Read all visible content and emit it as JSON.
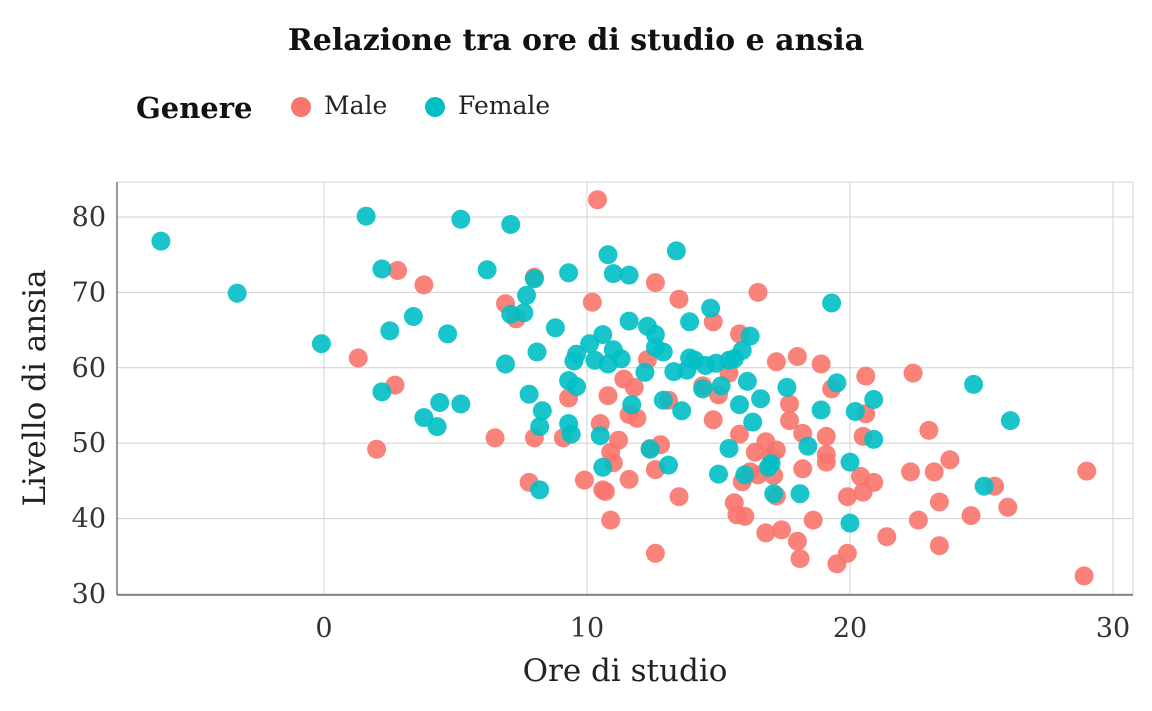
{
  "chart_data": {
    "type": "scatter",
    "title": "Relazione tra ore di studio e ansia",
    "xlabel": "Ore di studio",
    "ylabel": "Livello di ansia",
    "xlim": [
      -8,
      31
    ],
    "ylim": [
      30,
      85
    ],
    "xticks": [
      0,
      10,
      20,
      30
    ],
    "yticks": [
      30,
      40,
      50,
      60,
      70,
      80
    ],
    "grid": true,
    "legend": {
      "title": "Genere",
      "position": "top-left"
    },
    "series": [
      {
        "name": "Male",
        "color": "#F8766D",
        "points": [
          [
            10.4,
            82.3
          ],
          [
            2.8,
            72.9
          ],
          [
            3.8,
            71
          ],
          [
            8,
            72
          ],
          [
            6.9,
            68.5
          ],
          [
            7.3,
            66.5
          ],
          [
            10.2,
            68.7
          ],
          [
            12.6,
            71.3
          ],
          [
            13.5,
            69.1
          ],
          [
            14.8,
            66.1
          ],
          [
            16.5,
            70
          ],
          [
            1.3,
            61.3
          ],
          [
            2.7,
            57.7
          ],
          [
            2,
            49.2
          ],
          [
            6.5,
            50.7
          ],
          [
            7.8,
            44.8
          ],
          [
            8,
            50.7
          ],
          [
            9.1,
            50.7
          ],
          [
            9.3,
            56
          ],
          [
            9.9,
            45.1
          ],
          [
            10.5,
            52.6
          ],
          [
            10.6,
            43.8
          ],
          [
            10.7,
            43.6
          ],
          [
            10.8,
            56.3
          ],
          [
            10.9,
            48.8
          ],
          [
            10.9,
            39.8
          ],
          [
            11,
            47.4
          ],
          [
            11.2,
            50.4
          ],
          [
            11.4,
            58.5
          ],
          [
            11.6,
            53.8
          ],
          [
            11.6,
            45.2
          ],
          [
            11.9,
            53.3
          ],
          [
            11.8,
            57.4
          ],
          [
            12.3,
            61.1
          ],
          [
            12.4,
            49.3
          ],
          [
            12.6,
            46.5
          ],
          [
            12.6,
            35.4
          ],
          [
            12.8,
            49.8
          ],
          [
            13.1,
            55.7
          ],
          [
            13.5,
            42.9
          ],
          [
            14.4,
            57.6
          ],
          [
            14.8,
            53.1
          ],
          [
            15,
            56.4
          ],
          [
            15.4,
            59.3
          ],
          [
            15.6,
            42.1
          ],
          [
            15.7,
            40.5
          ],
          [
            15.8,
            64.5
          ],
          [
            15.8,
            51.2
          ],
          [
            15.9,
            44.9
          ],
          [
            16,
            40.3
          ],
          [
            16.2,
            46.2
          ],
          [
            16.4,
            48.8
          ],
          [
            16.5,
            45.8
          ],
          [
            16.8,
            50.2
          ],
          [
            16.8,
            38.1
          ],
          [
            17,
            48.3
          ],
          [
            17.1,
            45.7
          ],
          [
            17.2,
            43
          ],
          [
            17.2,
            49.1
          ],
          [
            17.2,
            60.8
          ],
          [
            17.4,
            38.5
          ],
          [
            17.7,
            55.2
          ],
          [
            17.7,
            53
          ],
          [
            18,
            61.5
          ],
          [
            18,
            37
          ],
          [
            18.1,
            34.7
          ],
          [
            18.2,
            46.6
          ],
          [
            18.2,
            51.3
          ],
          [
            18.6,
            39.8
          ],
          [
            18.9,
            60.5
          ],
          [
            19.1,
            48.5
          ],
          [
            19.1,
            47.5
          ],
          [
            19.1,
            50.9
          ],
          [
            19.3,
            57.2
          ],
          [
            19.5,
            34
          ],
          [
            19.9,
            42.9
          ],
          [
            19.9,
            35.4
          ],
          [
            20.4,
            45.6
          ],
          [
            20.5,
            50.9
          ],
          [
            20.5,
            43.5
          ],
          [
            20.6,
            53.9
          ],
          [
            20.6,
            58.9
          ],
          [
            20.9,
            44.8
          ],
          [
            21.4,
            37.6
          ],
          [
            22.3,
            46.2
          ],
          [
            22.4,
            59.3
          ],
          [
            22.6,
            39.8
          ],
          [
            23,
            51.7
          ],
          [
            23.2,
            46.2
          ],
          [
            23.4,
            36.4
          ],
          [
            23.4,
            42.2
          ],
          [
            23.8,
            47.8
          ],
          [
            24.6,
            40.4
          ],
          [
            25.5,
            44.3
          ],
          [
            26,
            41.5
          ],
          [
            28.9,
            32.4
          ],
          [
            29,
            46.3
          ]
        ]
      },
      {
        "name": "Female",
        "color": "#00BFC4",
        "points": [
          [
            -6.2,
            76.8
          ],
          [
            -3.3,
            69.9
          ],
          [
            -0.1,
            63.2
          ],
          [
            1.6,
            80.1
          ],
          [
            2.2,
            73.1
          ],
          [
            2.2,
            56.8
          ],
          [
            2.5,
            64.9
          ],
          [
            3.4,
            66.8
          ],
          [
            3.8,
            53.4
          ],
          [
            4.3,
            52.2
          ],
          [
            4.4,
            55.4
          ],
          [
            4.7,
            64.5
          ],
          [
            5.2,
            79.7
          ],
          [
            5.2,
            55.2
          ],
          [
            6.2,
            73
          ],
          [
            6.9,
            60.5
          ],
          [
            7.1,
            79
          ],
          [
            7.1,
            67.1
          ],
          [
            7.6,
            67.3
          ],
          [
            7.7,
            69.6
          ],
          [
            7.8,
            56.5
          ],
          [
            8,
            71.8
          ],
          [
            8.1,
            62.1
          ],
          [
            8.2,
            52.2
          ],
          [
            8.2,
            43.8
          ],
          [
            8.3,
            54.3
          ],
          [
            8.8,
            65.3
          ],
          [
            9.3,
            72.6
          ],
          [
            9.3,
            58.3
          ],
          [
            9.3,
            52.6
          ],
          [
            9.4,
            51.2
          ],
          [
            9.5,
            60.9
          ],
          [
            9.6,
            61.8
          ],
          [
            9.6,
            57.5
          ],
          [
            10.1,
            63.2
          ],
          [
            10.3,
            61
          ],
          [
            10.5,
            51
          ],
          [
            10.6,
            64.4
          ],
          [
            10.6,
            46.8
          ],
          [
            10.8,
            75
          ],
          [
            10.8,
            60.5
          ],
          [
            11,
            72.5
          ],
          [
            11,
            62.4
          ],
          [
            11.3,
            61.2
          ],
          [
            11.6,
            72.3
          ],
          [
            11.6,
            66.2
          ],
          [
            11.7,
            55.1
          ],
          [
            12.2,
            59.4
          ],
          [
            12.3,
            65.5
          ],
          [
            12.4,
            49.2
          ],
          [
            12.6,
            64.4
          ],
          [
            12.6,
            62.7
          ],
          [
            12.9,
            55.7
          ],
          [
            12.9,
            62.1
          ],
          [
            13.1,
            47.1
          ],
          [
            13.3,
            59.5
          ],
          [
            13.4,
            75.5
          ],
          [
            13.6,
            54.3
          ],
          [
            13.8,
            59.7
          ],
          [
            13.9,
            66.1
          ],
          [
            13.9,
            61.3
          ],
          [
            14.1,
            61
          ],
          [
            14.4,
            57.2
          ],
          [
            14.5,
            60.3
          ],
          [
            14.7,
            67.9
          ],
          [
            14.9,
            60.6
          ],
          [
            15,
            45.9
          ],
          [
            15.1,
            57.6
          ],
          [
            15.4,
            61
          ],
          [
            15.4,
            49.3
          ],
          [
            15.6,
            61.2
          ],
          [
            15.8,
            55.1
          ],
          [
            15.9,
            62.3
          ],
          [
            16,
            45.8
          ],
          [
            16.1,
            58.2
          ],
          [
            16.2,
            64.2
          ],
          [
            16.3,
            52.8
          ],
          [
            16.6,
            55.9
          ],
          [
            16.9,
            46.8
          ],
          [
            17,
            47.3
          ],
          [
            17.1,
            43.3
          ],
          [
            17.6,
            57.4
          ],
          [
            18.1,
            43.3
          ],
          [
            18.4,
            49.6
          ],
          [
            18.9,
            54.4
          ],
          [
            19.3,
            68.6
          ],
          [
            19.5,
            58
          ],
          [
            20,
            47.5
          ],
          [
            20,
            39.4
          ],
          [
            20.2,
            54.2
          ],
          [
            20.9,
            55.8
          ],
          [
            20.9,
            50.5
          ],
          [
            24.7,
            57.8
          ],
          [
            25.1,
            44.3
          ],
          [
            26.1,
            53
          ]
        ]
      }
    ]
  }
}
